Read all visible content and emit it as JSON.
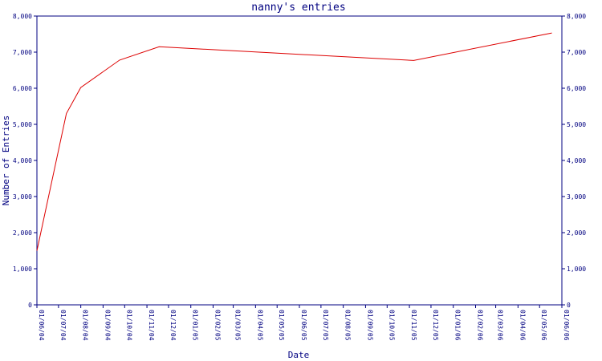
{
  "chart_data": {
    "type": "line",
    "title": "nanny's entries",
    "xlabel": "Date",
    "ylabel": "Number of Entries",
    "ylim": [
      0,
      8000
    ],
    "y_ticks": [
      "0",
      "1,000",
      "2,000",
      "3,000",
      "4,000",
      "5,000",
      "6,000",
      "7,000",
      "8,000"
    ],
    "y_tick_values": [
      0,
      1000,
      2000,
      3000,
      4000,
      5000,
      6000,
      7000,
      8000
    ],
    "x_ticks": [
      "01/06/04",
      "01/07/04",
      "01/08/04",
      "01/09/04",
      "01/10/04",
      "01/11/04",
      "01/12/04",
      "01/01/05",
      "01/02/05",
      "01/03/05",
      "01/04/05",
      "01/05/05",
      "01/06/05",
      "01/07/05",
      "01/08/05",
      "01/09/05",
      "01/10/05",
      "01/11/05",
      "01/12/05",
      "01/01/06",
      "01/02/06",
      "01/03/06",
      "01/04/06",
      "01/05/06",
      "01/06/06"
    ],
    "x_tick_values": [
      "2004-06-01",
      "2004-07-01",
      "2004-08-01",
      "2004-09-01",
      "2004-10-01",
      "2004-11-01",
      "2004-12-01",
      "2005-01-01",
      "2005-02-01",
      "2005-03-01",
      "2005-04-01",
      "2005-05-01",
      "2005-06-01",
      "2005-07-01",
      "2005-08-01",
      "2005-09-01",
      "2005-10-01",
      "2005-11-01",
      "2005-12-01",
      "2006-01-01",
      "2006-02-01",
      "2006-03-01",
      "2006-04-01",
      "2006-05-01",
      "2006-06-01"
    ],
    "xlim": [
      "2004-06-01",
      "2006-06-01"
    ],
    "grid": false,
    "y_axis_right": true,
    "colors": {
      "line": "#dd0000",
      "axes": "#000080",
      "text": "#000080"
    },
    "series": [
      {
        "x": [
          "2004-06-01",
          "2004-07-12",
          "2004-08-01",
          "2004-09-24",
          "2004-11-18",
          "2005-11-07",
          "2006-05-18"
        ],
        "values": [
          1500,
          5300,
          6020,
          6780,
          7150,
          6770,
          7530
        ]
      }
    ]
  }
}
